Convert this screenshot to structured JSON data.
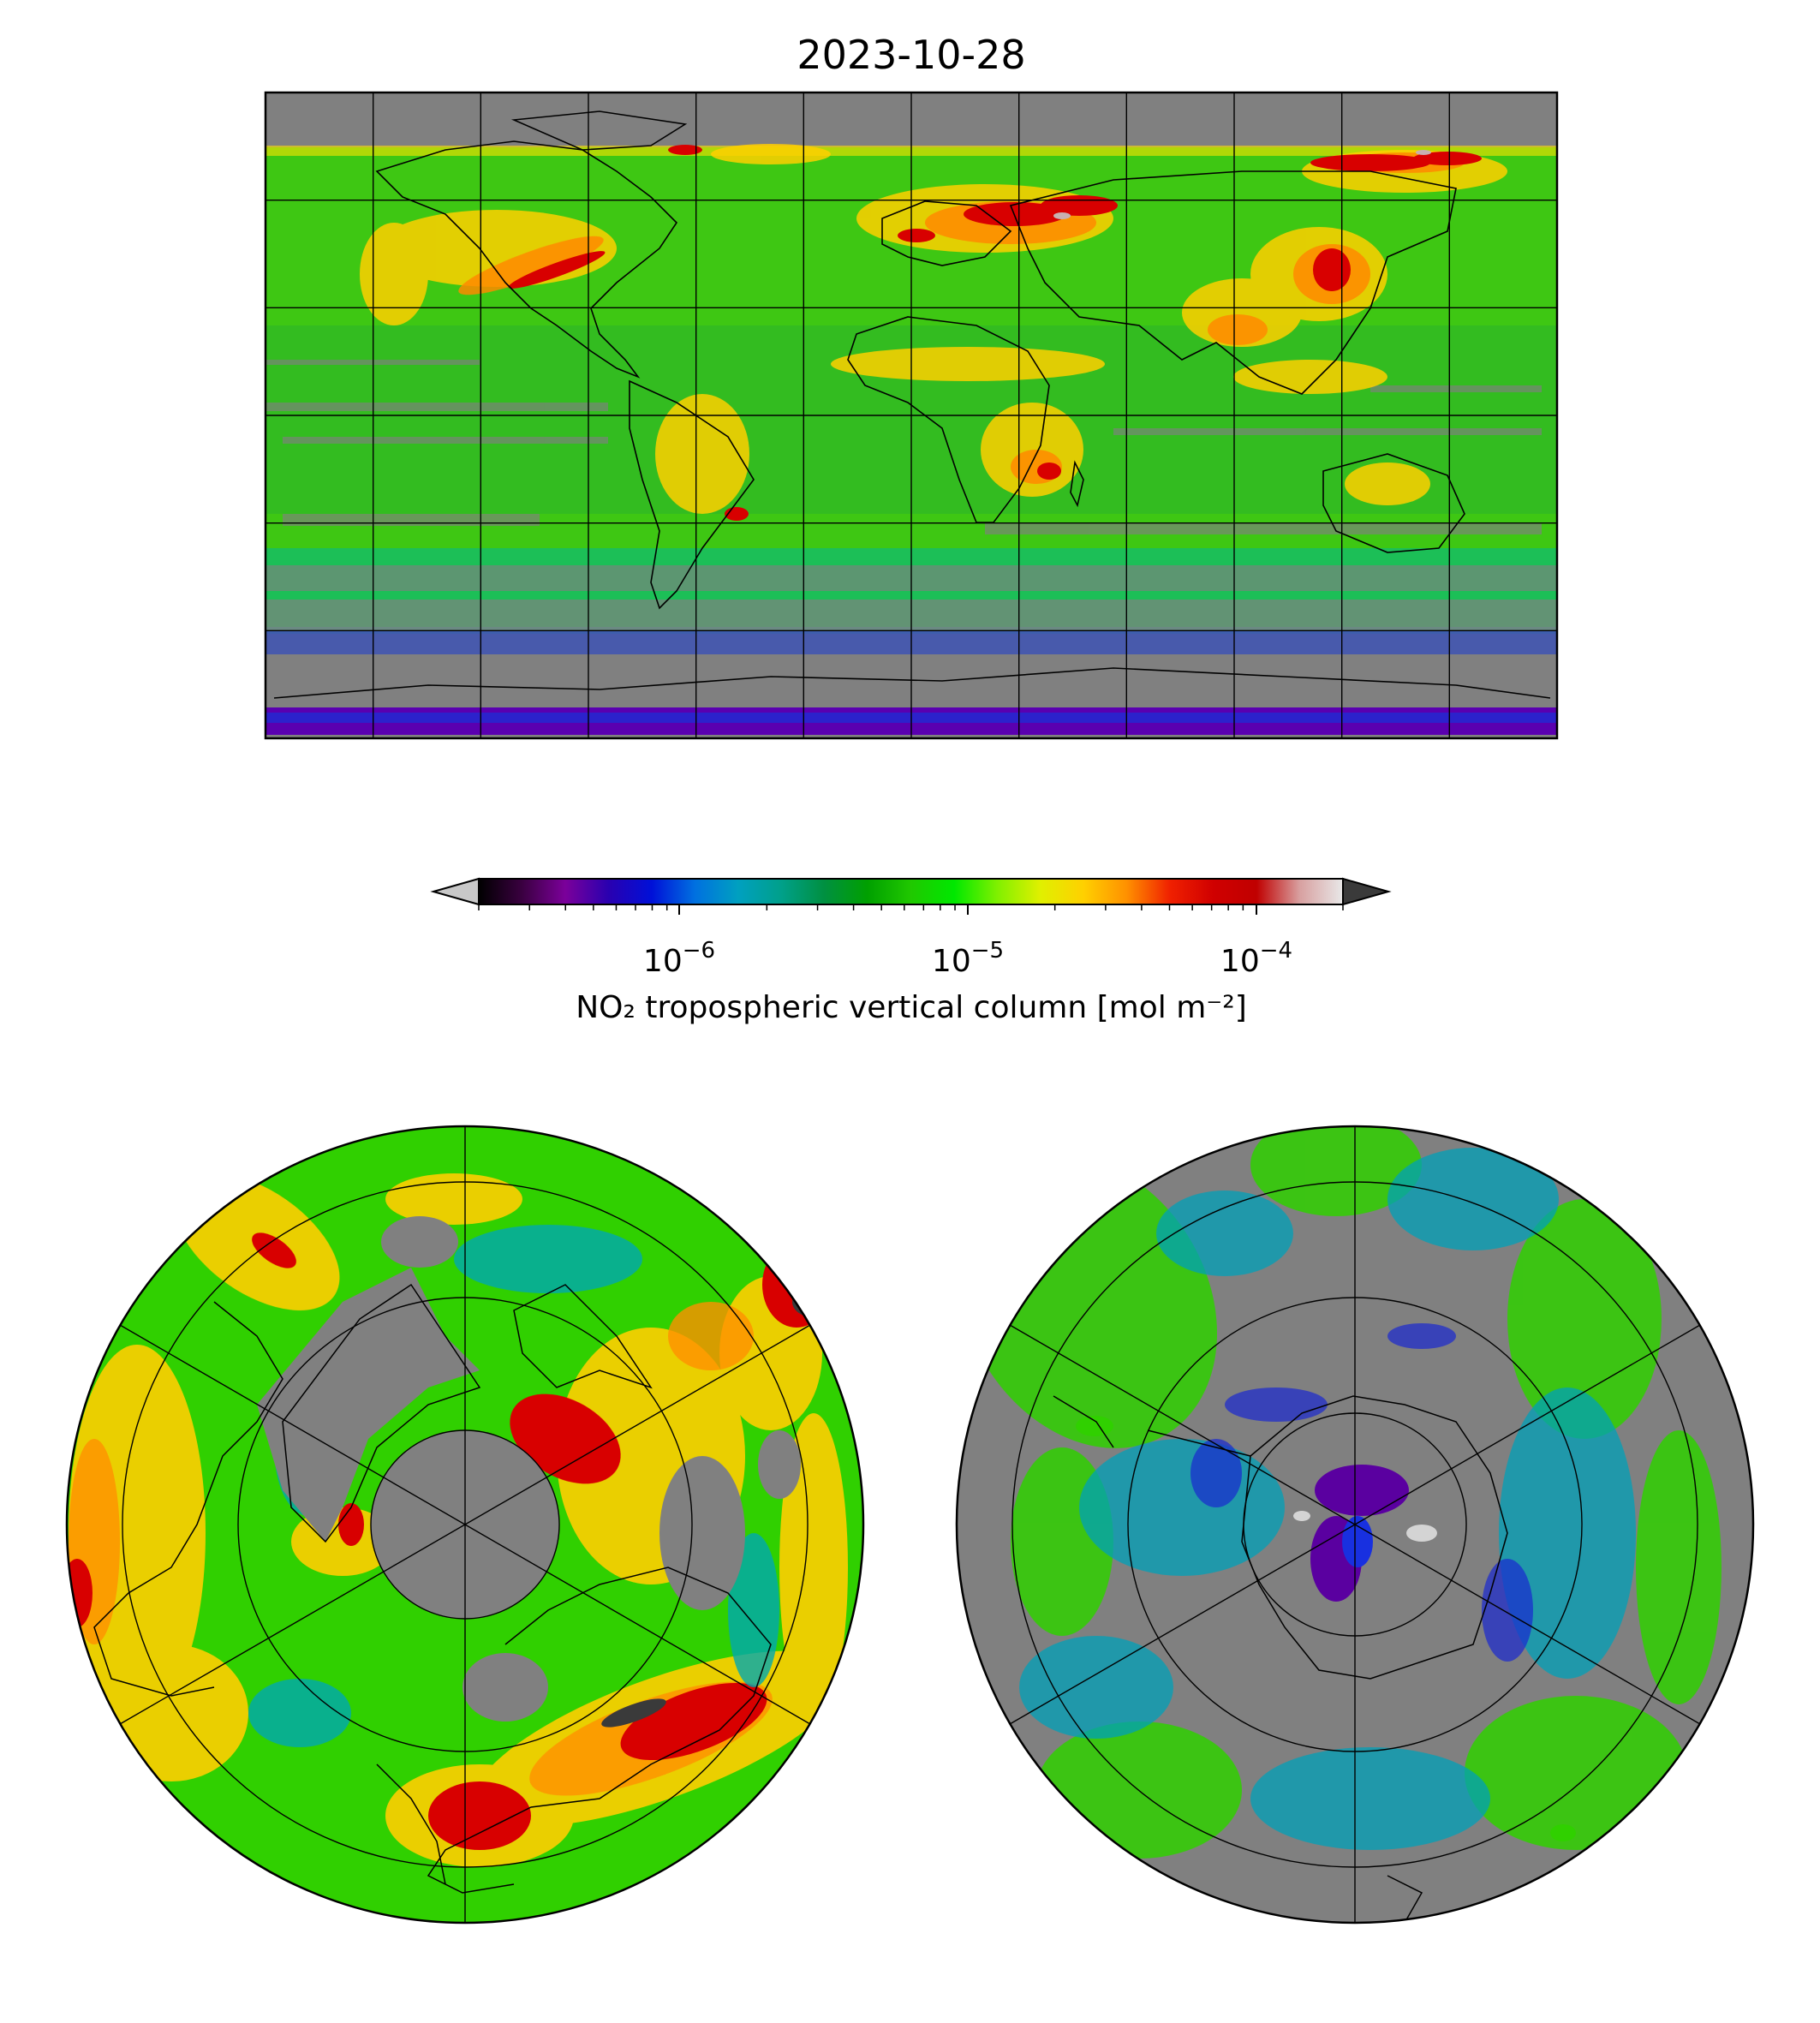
{
  "figure": {
    "title": "2023-10-28",
    "colorbar": {
      "label": "NO₂ tropospheric vertical column [mol m⁻²]",
      "scale": "log",
      "range": [
        2e-07,
        0.0002
      ],
      "extend": "both",
      "orientation": "horizontal",
      "ticks": [
        {
          "base": "10",
          "exp": "−6",
          "value": 1e-06
        },
        {
          "base": "10",
          "exp": "−5",
          "value": 1e-05
        },
        {
          "base": "10",
          "exp": "−4",
          "value": 0.0001
        }
      ],
      "colors": [
        "#000000",
        "#3a0040",
        "#7b009a",
        "#2a00b0",
        "#0010d8",
        "#0070e0",
        "#00a0c0",
        "#00a08a",
        "#009040",
        "#00a000",
        "#20c800",
        "#00e800",
        "#80f000",
        "#e0f000",
        "#ffd000",
        "#ff9000",
        "#f02000",
        "#d00000",
        "#c00000",
        "#d8a0a0",
        "#e8e8e8"
      ],
      "under_color": "#c8c8c8",
      "over_color": "#3a3a3a"
    },
    "maps": [
      {
        "name": "global",
        "projection": "equirectangular",
        "lon_range": [
          -180,
          180
        ],
        "lat_range": [
          -90,
          90
        ],
        "gridline_spacing_deg": 30,
        "nodata_color": "#808080"
      },
      {
        "name": "north-polar",
        "projection": "north-polar-stereographic",
        "center": "North Pole",
        "gridline_spacing_deg": 30,
        "nodata_color": "#808080"
      },
      {
        "name": "south-polar",
        "projection": "south-polar-stereographic",
        "center": "South Pole",
        "gridline_spacing_deg": 30,
        "nodata_color": "#808080"
      }
    ]
  }
}
